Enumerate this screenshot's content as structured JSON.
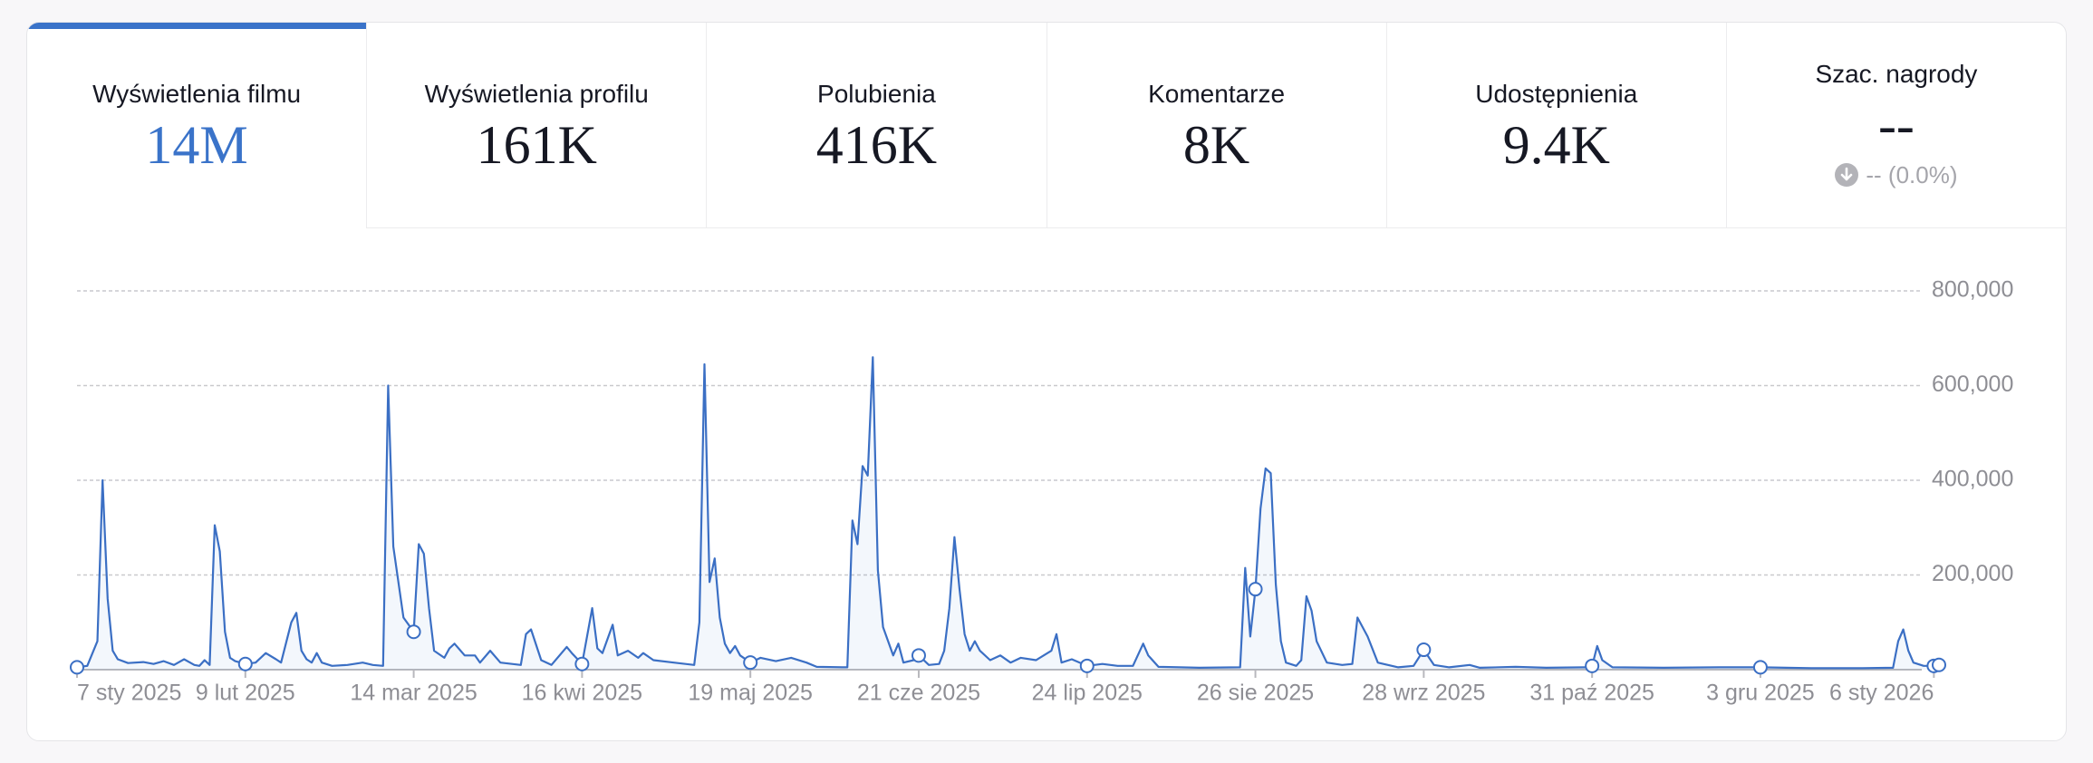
{
  "metrics": [
    {
      "label": "Wyświetlenia filmu",
      "value": "14M"
    },
    {
      "label": "Wyświetlenia profilu",
      "value": "161K"
    },
    {
      "label": "Polubienia",
      "value": "416K"
    },
    {
      "label": "Komentarze",
      "value": "8K"
    },
    {
      "label": "Udostępnienia",
      "value": "9.4K"
    },
    {
      "label": "Szac. nagrody",
      "value": "--",
      "change": "-- (0.0%)"
    }
  ],
  "chart_data": {
    "type": "line",
    "color": "#3b6fc4",
    "grid": true,
    "xlim": [
      "2025-01-07",
      "2026-01-07"
    ],
    "xticks": [
      {
        "value": "2025-01-07",
        "label": "7 sty 2025"
      },
      {
        "value": "2025-02-09",
        "label": "9 lut 2025"
      },
      {
        "value": "2025-03-14",
        "label": "14 mar 2025"
      },
      {
        "value": "2025-04-16",
        "label": "16 kwi 2025"
      },
      {
        "value": "2025-05-19",
        "label": "19 maj 2025"
      },
      {
        "value": "2025-06-21",
        "label": "21 cze 2025"
      },
      {
        "value": "2025-07-24",
        "label": "24 lip 2025"
      },
      {
        "value": "2025-08-26",
        "label": "26 sie 2025"
      },
      {
        "value": "2025-09-28",
        "label": "28 wrz 2025"
      },
      {
        "value": "2025-10-31",
        "label": "31 paź 2025"
      },
      {
        "value": "2025-12-03",
        "label": "3 gru 2025"
      },
      {
        "value": "2026-01-06",
        "label": "6 sty 2026"
      }
    ],
    "ylim": [
      0,
      800000
    ],
    "yticks": [
      {
        "value": 200000,
        "label": "200,000"
      },
      {
        "value": 400000,
        "label": "400,000"
      },
      {
        "value": 600000,
        "label": "600,000"
      },
      {
        "value": 800000,
        "label": "800,000"
      }
    ],
    "x": [
      "2025-01-07",
      "2025-01-09",
      "2025-01-11",
      "2025-01-12",
      "2025-01-13",
      "2025-01-14",
      "2025-01-15",
      "2025-01-17",
      "2025-01-20",
      "2025-01-22",
      "2025-01-24",
      "2025-01-26",
      "2025-01-28",
      "2025-01-30",
      "2025-01-31",
      "2025-02-01",
      "2025-02-02",
      "2025-02-03",
      "2025-02-04",
      "2025-02-05",
      "2025-02-06",
      "2025-02-07",
      "2025-02-09",
      "2025-02-11",
      "2025-02-13",
      "2025-02-15",
      "2025-02-16",
      "2025-02-18",
      "2025-02-19",
      "2025-02-20",
      "2025-02-21",
      "2025-02-22",
      "2025-02-23",
      "2025-02-24",
      "2025-02-26",
      "2025-03-01",
      "2025-03-04",
      "2025-03-06",
      "2025-03-08",
      "2025-03-09",
      "2025-03-10",
      "2025-03-12",
      "2025-03-14",
      "2025-03-15",
      "2025-03-16",
      "2025-03-17",
      "2025-03-18",
      "2025-03-20",
      "2025-03-21",
      "2025-03-22",
      "2025-03-24",
      "2025-03-26",
      "2025-03-27",
      "2025-03-29",
      "2025-03-31",
      "2025-04-04",
      "2025-04-05",
      "2025-04-06",
      "2025-04-08",
      "2025-04-10",
      "2025-04-13",
      "2025-04-14",
      "2025-04-16",
      "2025-04-18",
      "2025-04-19",
      "2025-04-20",
      "2025-04-22",
      "2025-04-23",
      "2025-04-25",
      "2025-04-27",
      "2025-04-28",
      "2025-04-30",
      "2025-05-04",
      "2025-05-08",
      "2025-05-09",
      "2025-05-10",
      "2025-05-11",
      "2025-05-12",
      "2025-05-13",
      "2025-05-14",
      "2025-05-15",
      "2025-05-16",
      "2025-05-17",
      "2025-05-19",
      "2025-05-21",
      "2025-05-24",
      "2025-05-27",
      "2025-05-30",
      "2025-06-01",
      "2025-06-06",
      "2025-06-07",
      "2025-06-08",
      "2025-06-09",
      "2025-06-10",
      "2025-06-11",
      "2025-06-12",
      "2025-06-13",
      "2025-06-14",
      "2025-06-15",
      "2025-06-16",
      "2025-06-17",
      "2025-06-18",
      "2025-06-20",
      "2025-06-21",
      "2025-06-23",
      "2025-06-25",
      "2025-06-26",
      "2025-06-27",
      "2025-06-28",
      "2025-06-29",
      "2025-06-30",
      "2025-07-01",
      "2025-07-02",
      "2025-07-03",
      "2025-07-05",
      "2025-07-07",
      "2025-07-09",
      "2025-07-11",
      "2025-07-14",
      "2025-07-17",
      "2025-07-18",
      "2025-07-19",
      "2025-07-21",
      "2025-07-24",
      "2025-07-27",
      "2025-07-30",
      "2025-08-02",
      "2025-08-04",
      "2025-08-05",
      "2025-08-07",
      "2025-08-15",
      "2025-08-23",
      "2025-08-24",
      "2025-08-25",
      "2025-08-26",
      "2025-08-27",
      "2025-08-28",
      "2025-08-29",
      "2025-08-30",
      "2025-08-31",
      "2025-09-01",
      "2025-09-03",
      "2025-09-04",
      "2025-09-05",
      "2025-09-06",
      "2025-09-07",
      "2025-09-09",
      "2025-09-12",
      "2025-09-14",
      "2025-09-15",
      "2025-09-17",
      "2025-09-19",
      "2025-09-23",
      "2025-09-26",
      "2025-09-28",
      "2025-09-30",
      "2025-10-03",
      "2025-10-07",
      "2025-10-09",
      "2025-10-16",
      "2025-10-22",
      "2025-10-30",
      "2025-10-31",
      "2025-11-01",
      "2025-11-02",
      "2025-11-04",
      "2025-11-14",
      "2025-11-25",
      "2025-12-03",
      "2025-12-13",
      "2025-12-23",
      "2025-12-29",
      "2025-12-30",
      "2025-12-31",
      "2026-01-01",
      "2026-01-02",
      "2026-01-04",
      "2026-01-06",
      "2026-01-07"
    ],
    "values": [
      5000,
      8000,
      60000,
      400000,
      150000,
      40000,
      22000,
      14000,
      16000,
      12000,
      18000,
      10000,
      22000,
      10000,
      8000,
      20000,
      10000,
      305000,
      250000,
      80000,
      25000,
      18000,
      12000,
      15000,
      35000,
      22000,
      15000,
      100000,
      120000,
      40000,
      22000,
      15000,
      35000,
      15000,
      8000,
      10000,
      15000,
      10000,
      8000,
      600000,
      260000,
      110000,
      80000,
      265000,
      245000,
      130000,
      40000,
      25000,
      45000,
      55000,
      30000,
      30000,
      15000,
      40000,
      15000,
      10000,
      75000,
      85000,
      20000,
      10000,
      48000,
      35000,
      12000,
      130000,
      45000,
      35000,
      95000,
      30000,
      40000,
      25000,
      35000,
      20000,
      15000,
      10000,
      100000,
      645000,
      185000,
      235000,
      110000,
      55000,
      35000,
      50000,
      30000,
      15000,
      25000,
      18000,
      25000,
      15000,
      6000,
      5000,
      5000,
      315000,
      265000,
      430000,
      410000,
      660000,
      210000,
      90000,
      60000,
      30000,
      55000,
      15000,
      20000,
      30000,
      10000,
      12000,
      40000,
      130000,
      280000,
      170000,
      75000,
      40000,
      60000,
      40000,
      20000,
      30000,
      15000,
      25000,
      20000,
      40000,
      75000,
      15000,
      22000,
      8000,
      12000,
      8000,
      8000,
      55000,
      30000,
      6000,
      4000,
      5000,
      215000,
      70000,
      170000,
      340000,
      425000,
      415000,
      180000,
      60000,
      15000,
      8000,
      20000,
      155000,
      125000,
      60000,
      15000,
      10000,
      12000,
      110000,
      70000,
      15000,
      5000,
      8000,
      42000,
      10000,
      5000,
      10000,
      4000,
      6000,
      4000,
      5000,
      8000,
      50000,
      20000,
      5000,
      4000,
      5000,
      5000,
      3000,
      3000,
      4000,
      60000,
      85000,
      40000,
      15000,
      8000,
      8000,
      10000
    ]
  }
}
